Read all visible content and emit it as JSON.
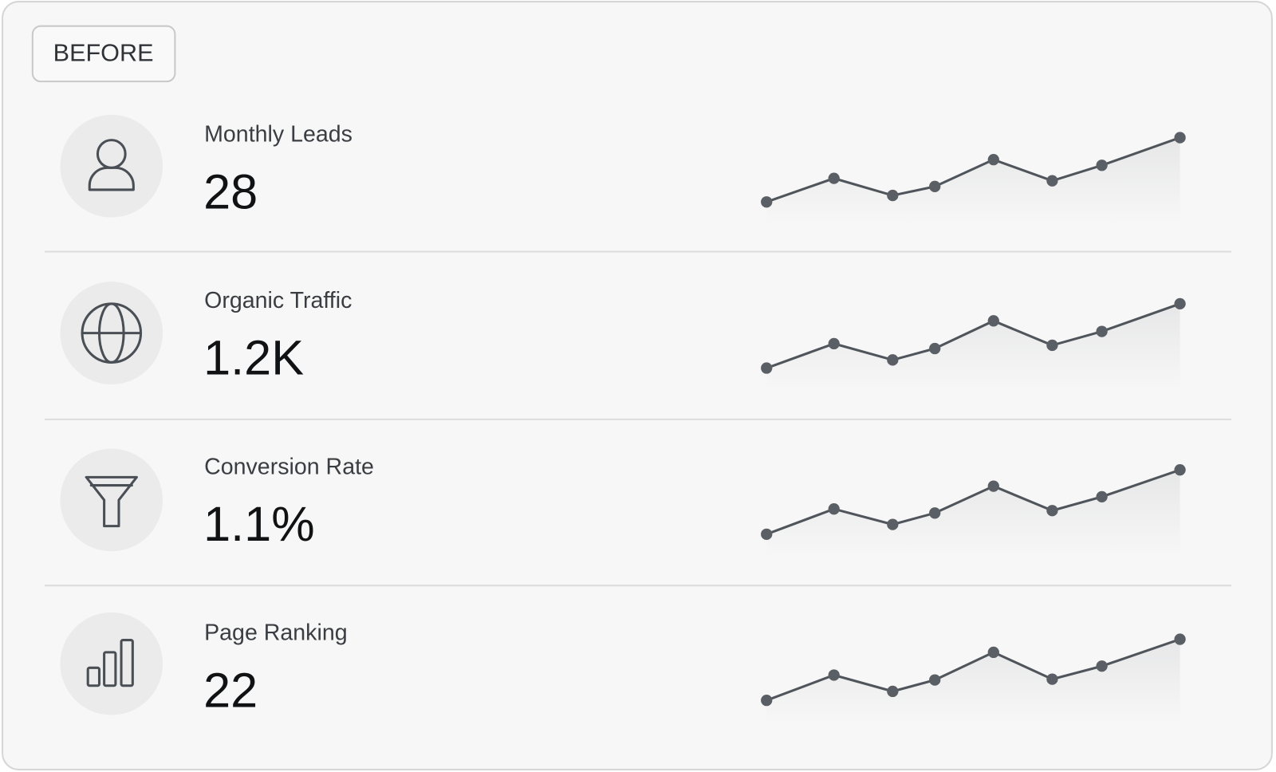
{
  "badge": "BEFORE",
  "metrics": [
    {
      "label": "Monthly Leads",
      "value": "28",
      "sparkline": {
        "type": "line",
        "x": [
          0,
          16.3,
          30.5,
          40.7,
          54.9,
          69.1,
          81.1,
          100
        ],
        "values": [
          22,
          51,
          30,
          41,
          74,
          48,
          67,
          101
        ],
        "xlim": [
          0,
          100
        ],
        "ylim": [
          0,
          110
        ]
      }
    },
    {
      "label": "Organic Traffic",
      "value": "1.2K",
      "sparkline": {
        "type": "line",
        "x": [
          0,
          16.3,
          30.5,
          40.7,
          54.9,
          69.1,
          81.1,
          100
        ],
        "values": [
          22,
          52,
          32,
          46,
          80,
          50,
          67,
          101
        ],
        "xlim": [
          0,
          100
        ],
        "ylim": [
          0,
          110
        ]
      }
    },
    {
      "label": "Conversion Rate",
      "value": "1.1%",
      "sparkline": {
        "type": "line",
        "x": [
          0,
          16.3,
          30.5,
          40.7,
          54.9,
          69.1,
          81.1,
          100
        ],
        "values": [
          22,
          53,
          34,
          48,
          81,
          51,
          68,
          101
        ],
        "xlim": [
          0,
          100
        ],
        "ylim": [
          0,
          110
        ]
      }
    },
    {
      "label": "Page Ranking",
      "value": "22",
      "sparkline": {
        "type": "line",
        "x": [
          0,
          16.3,
          30.5,
          40.7,
          54.9,
          69.1,
          81.1,
          100
        ],
        "values": [
          22,
          53,
          33,
          47,
          81,
          48,
          64,
          97
        ],
        "xlim": [
          0,
          100
        ],
        "ylim": [
          0,
          110
        ]
      }
    }
  ]
}
